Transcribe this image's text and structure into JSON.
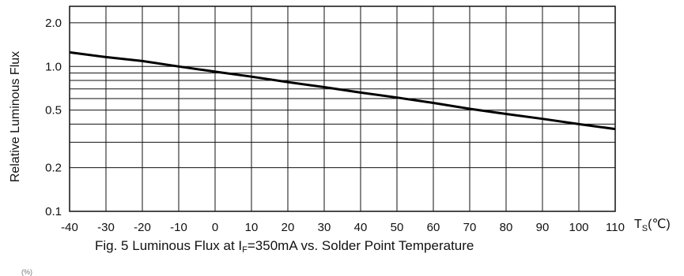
{
  "chart_data": {
    "type": "line",
    "title": "Fig. 5 Luminous Flux at I",
    "title_subscript": "F",
    "title_rest": "=350mA vs. Solder Point Temperature",
    "ylabel": "Relative Luminous Flux",
    "xlabel_main": "T",
    "xlabel_sub": "S",
    "xlabel_unit": "(℃)",
    "yscale": "log",
    "xlim": [
      -40,
      110
    ],
    "ylim": [
      0.1,
      2.6
    ],
    "x_ticks": [
      -40,
      -30,
      -20,
      -10,
      0,
      10,
      20,
      30,
      40,
      50,
      60,
      70,
      80,
      90,
      100,
      110
    ],
    "x_tick_labels": [
      "-40",
      "-30",
      "-20",
      "-10",
      "0",
      "10",
      "20",
      "30",
      "40",
      "50",
      "60",
      "70",
      "80",
      "90",
      "100",
      "110"
    ],
    "y_ticks": [
      0.1,
      0.2,
      0.5,
      1.0,
      2.0
    ],
    "y_tick_labels": [
      "0.1",
      "0.2",
      "0.5",
      "1.0",
      "2.0"
    ],
    "y_gridlines": [
      0.1,
      0.2,
      0.3,
      0.4,
      0.5,
      0.6,
      0.7,
      0.8,
      0.9,
      1.0,
      2.0
    ],
    "grid": true,
    "series": [
      {
        "x": [
          -40,
          -30,
          -20,
          -10,
          0,
          10,
          20,
          30,
          40,
          50,
          60,
          70,
          80,
          90,
          100,
          110
        ],
        "y": [
          1.25,
          1.16,
          1.09,
          1.0,
          0.92,
          0.85,
          0.78,
          0.72,
          0.66,
          0.61,
          0.56,
          0.51,
          0.47,
          0.435,
          0.4,
          0.37
        ]
      }
    ]
  },
  "stray_text": "(%)"
}
